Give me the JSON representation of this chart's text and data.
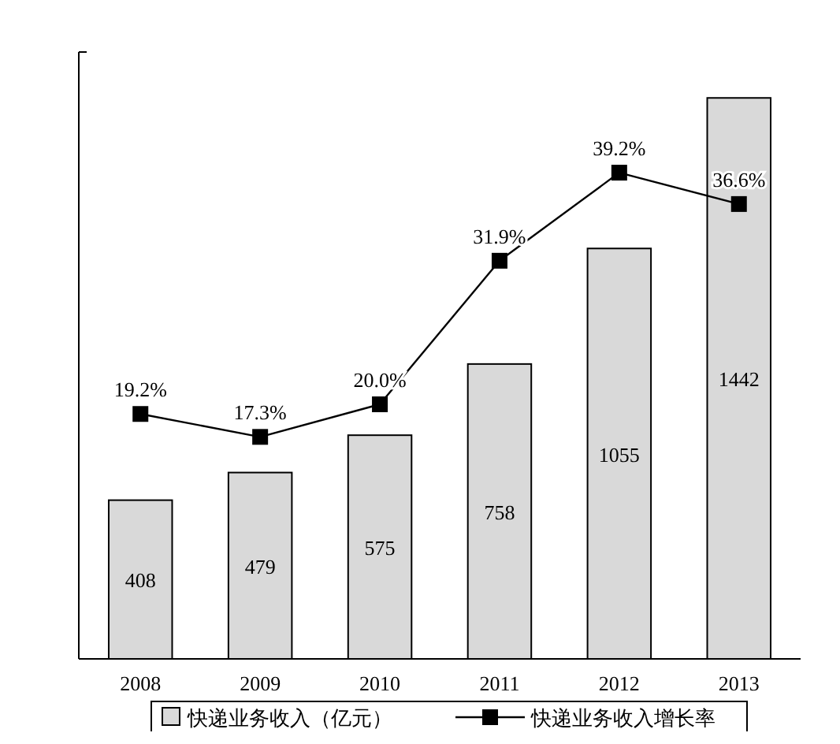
{
  "chart_data": {
    "type": "bar",
    "categories": [
      "2008",
      "2009",
      "2010",
      "2011",
      "2012",
      "2013"
    ],
    "ylim": [
      0,
      1560
    ],
    "y2lim": [
      -1.1,
      49.2
    ],
    "tick_labels": "x",
    "legend": "bottom",
    "series": [
      {
        "name": "快递业务收入（亿元）",
        "color": "#d9d9d9",
        "values": [
          408,
          479,
          575,
          758,
          1055,
          1442
        ],
        "data_labels": true
      },
      {
        "name": "快递业务收入增长率",
        "type": "line",
        "axis": "y2",
        "color": "#000000",
        "marker": "square",
        "line_style": "solid",
        "values": [
          19.2,
          17.3,
          20.0,
          31.9,
          39.2,
          36.6
        ],
        "value_labels": [
          "19.2%",
          "17.3%",
          "20.0%",
          "31.9%",
          "39.2%",
          "36.6%"
        ]
      }
    ]
  }
}
